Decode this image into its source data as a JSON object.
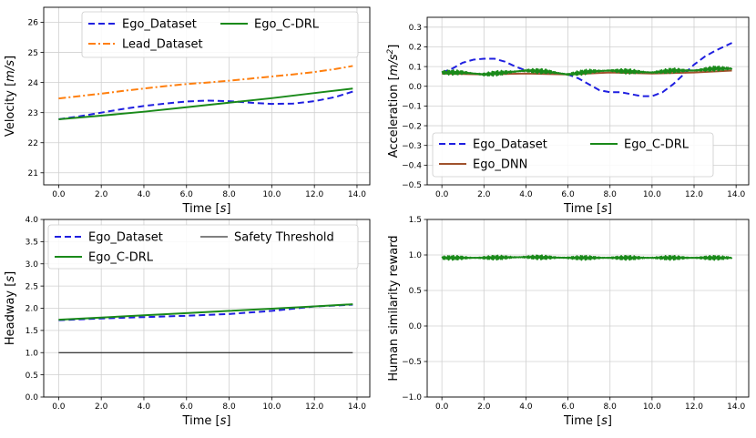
{
  "chart_data": [
    {
      "type": "line",
      "panel": "top-left",
      "xlabel_text": "Time ",
      "xlabel_unit": "s",
      "ylabel_text": "Velocity ",
      "ylabel_unit": "m/s",
      "xlim": [
        -0.7,
        14.6
      ],
      "ylim": [
        20.6,
        26.5
      ],
      "xticks": [
        0,
        2,
        4,
        6,
        8,
        10,
        12,
        14
      ],
      "xtick_labels": [
        "0.0",
        "2.0",
        "4.0",
        "6.0",
        "8.0",
        "10.0",
        "12.0",
        "14.0"
      ],
      "yticks": [
        21,
        22,
        23,
        24,
        25,
        26
      ],
      "ytick_labels": [
        "21",
        "22",
        "23",
        "24",
        "25",
        "26"
      ],
      "legend": {
        "placement": "top",
        "entries": [
          "Ego_Dataset",
          "Ego_C-DRL",
          "Lead_Dataset"
        ]
      },
      "series": [
        {
          "name": "Ego_Dataset",
          "color": "#1f1fe0",
          "style": "dashed",
          "x": [
            0,
            1,
            2,
            3,
            4,
            5,
            6,
            7,
            8,
            9,
            10,
            11,
            12,
            13,
            13.8
          ],
          "y": [
            22.78,
            22.88,
            23.0,
            23.12,
            23.22,
            23.3,
            23.37,
            23.4,
            23.38,
            23.33,
            23.29,
            23.3,
            23.38,
            23.52,
            23.7
          ]
        },
        {
          "name": "Lead_Dataset",
          "color": "#ff7f0e",
          "style": "dashdot",
          "x": [
            0,
            1,
            2,
            3,
            4,
            5,
            6,
            7,
            8,
            9,
            10,
            11,
            12,
            13,
            13.8
          ],
          "y": [
            23.47,
            23.55,
            23.63,
            23.72,
            23.8,
            23.88,
            23.95,
            24.0,
            24.06,
            24.13,
            24.2,
            24.27,
            24.35,
            24.45,
            24.55
          ]
        },
        {
          "name": "Ego_C-DRL",
          "color": "#1a8a1a",
          "style": "solid",
          "x": [
            0,
            2,
            4,
            6,
            8,
            10,
            12,
            13.8
          ],
          "y": [
            22.78,
            22.9,
            23.03,
            23.18,
            23.33,
            23.48,
            23.65,
            23.8
          ]
        }
      ]
    },
    {
      "type": "line",
      "panel": "top-right",
      "xlabel_text": "Time ",
      "xlabel_unit": "s",
      "ylabel_text": "Acceleration ",
      "ylabel_unit": "m/s",
      "ylabel_sup": "2",
      "xlim": [
        -0.7,
        14.6
      ],
      "ylim": [
        -0.5,
        0.35
      ],
      "xticks": [
        0,
        2,
        4,
        6,
        8,
        10,
        12,
        14
      ],
      "xtick_labels": [
        "0.0",
        "2.0",
        "4.0",
        "6.0",
        "8.0",
        "10.0",
        "12.0",
        "14.0"
      ],
      "yticks": [
        -0.5,
        -0.4,
        -0.3,
        -0.2,
        -0.1,
        0.0,
        0.1,
        0.2,
        0.3
      ],
      "ytick_labels": [
        "−0.5",
        "−0.4",
        "−0.3",
        "−0.2",
        "−0.1",
        "0.0",
        "0.1",
        "0.2",
        "0.3"
      ],
      "legend": {
        "placement": "lower-left",
        "entries": [
          "Ego_Dataset",
          "Ego_C-DRL",
          "Ego_DNN"
        ]
      },
      "series": [
        {
          "name": "Ego_Dataset",
          "color": "#1f1fe0",
          "style": "dashed",
          "x": [
            0,
            0.5,
            1,
            1.5,
            2,
            2.5,
            3,
            3.5,
            4,
            5,
            6,
            6.5,
            7,
            7.5,
            8,
            8.5,
            9,
            9.5,
            10,
            10.5,
            11,
            11.5,
            12,
            12.5,
            13,
            13.5,
            13.8
          ],
          "y": [
            0.07,
            0.09,
            0.12,
            0.135,
            0.14,
            0.14,
            0.125,
            0.1,
            0.08,
            0.07,
            0.06,
            0.04,
            0.01,
            -0.02,
            -0.03,
            -0.03,
            -0.04,
            -0.05,
            -0.05,
            -0.03,
            0.01,
            0.06,
            0.11,
            0.15,
            0.18,
            0.205,
            0.22
          ]
        },
        {
          "name": "Ego_DNN",
          "color": "#a0522d",
          "style": "solid",
          "x": [
            0,
            2,
            4,
            6,
            8,
            10,
            12,
            13.8
          ],
          "y": [
            0.065,
            0.06,
            0.065,
            0.06,
            0.07,
            0.065,
            0.07,
            0.08
          ]
        },
        {
          "name": "Ego_C-DRL",
          "color": "#1a8a1a",
          "style": "solid",
          "oscillating": true,
          "x": [
            0,
            1,
            2,
            3,
            4,
            5,
            6,
            7,
            8,
            9,
            10,
            11,
            12,
            13,
            13.8
          ],
          "y": [
            0.07,
            0.07,
            0.06,
            0.07,
            0.08,
            0.075,
            0.06,
            0.075,
            0.08,
            0.075,
            0.07,
            0.08,
            0.08,
            0.09,
            0.09
          ],
          "amplitude": 0.012
        }
      ]
    },
    {
      "type": "line",
      "panel": "bottom-left",
      "xlabel_text": "Time ",
      "xlabel_unit": "s",
      "ylabel_text": "Headway ",
      "ylabel_unit": "s",
      "xlim": [
        -0.7,
        14.6
      ],
      "ylim": [
        0.0,
        4.0
      ],
      "xticks": [
        0,
        2,
        4,
        6,
        8,
        10,
        12,
        14
      ],
      "xtick_labels": [
        "0.0",
        "2.0",
        "4.0",
        "6.0",
        "8.0",
        "10.0",
        "12.0",
        "14.0"
      ],
      "yticks": [
        0,
        0.5,
        1,
        1.5,
        2,
        2.5,
        3,
        3.5,
        4
      ],
      "ytick_labels": [
        "0.0",
        "0.5",
        "1.0",
        "1.5",
        "2.0",
        "2.5",
        "3.0",
        "3.5",
        "4.0"
      ],
      "legend": {
        "placement": "top",
        "entries": [
          "Ego_Dataset",
          "Safety Threshold",
          "Ego_C-DRL"
        ]
      },
      "series": [
        {
          "name": "Ego_Dataset",
          "color": "#1f1fe0",
          "style": "dashed",
          "x": [
            0,
            2,
            4,
            6,
            8,
            10,
            12,
            13.8
          ],
          "y": [
            1.73,
            1.77,
            1.8,
            1.83,
            1.87,
            1.94,
            2.04,
            2.08
          ]
        },
        {
          "name": "Ego_C-DRL",
          "color": "#1a8a1a",
          "style": "solid",
          "x": [
            0,
            2,
            4,
            6,
            8,
            10,
            12,
            13.8
          ],
          "y": [
            1.74,
            1.79,
            1.84,
            1.89,
            1.94,
            1.99,
            2.04,
            2.09
          ]
        },
        {
          "name": "Safety Threshold",
          "color": "#000000",
          "style": "thin",
          "x": [
            0,
            13.8
          ],
          "y": [
            1.0,
            1.0
          ]
        }
      ]
    },
    {
      "type": "line",
      "panel": "bottom-right",
      "xlabel_text": "Time ",
      "xlabel_unit": "s",
      "ylabel_text": "Human similarity reward",
      "ylabel_unit": "",
      "xlim": [
        -0.7,
        14.6
      ],
      "ylim": [
        -1.0,
        1.5
      ],
      "xticks": [
        0,
        2,
        4,
        6,
        8,
        10,
        12,
        14
      ],
      "xtick_labels": [
        "0.0",
        "2.0",
        "4.0",
        "6.0",
        "8.0",
        "10.0",
        "12.0",
        "14.0"
      ],
      "yticks": [
        -1.0,
        -0.5,
        0.0,
        0.5,
        1.0,
        1.5
      ],
      "ytick_labels": [
        "−1.0",
        "−0.5",
        "0.0",
        "0.5",
        "1.0",
        "1.5"
      ],
      "legend": {
        "placement": "none",
        "entries": []
      },
      "series": [
        {
          "name": "Ego_C-DRL",
          "color": "#1a8a1a",
          "style": "solid",
          "oscillating": true,
          "x": [
            0,
            2,
            4,
            6,
            8,
            10,
            12,
            13.8
          ],
          "y": [
            0.96,
            0.96,
            0.97,
            0.96,
            0.96,
            0.96,
            0.96,
            0.96
          ],
          "amplitude": 0.03
        }
      ]
    }
  ]
}
